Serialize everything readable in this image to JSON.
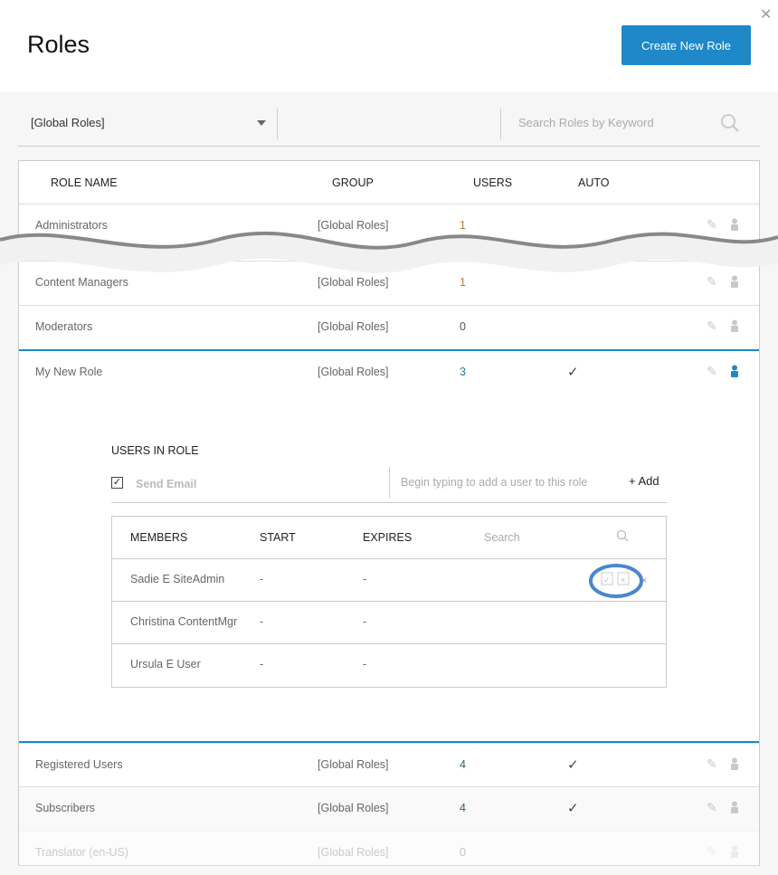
{
  "header": {
    "title": "Roles",
    "create_label": "Create New Role",
    "close_icon": "close-icon"
  },
  "filter": {
    "group_selected": "[Global Roles]",
    "search_placeholder": "Search Roles by Keyword"
  },
  "columns": {
    "name": "ROLE NAME",
    "group": "GROUP",
    "users": "USERS",
    "auto": "AUTO"
  },
  "roles": [
    {
      "name": "Administrators",
      "group": "[Global Roles]",
      "users": "1",
      "auto": ""
    },
    {
      "name": "Content Managers",
      "group": "[Global Roles]",
      "users": "1",
      "auto": ""
    },
    {
      "name": "Moderators",
      "group": "[Global Roles]",
      "users": "0",
      "auto": ""
    },
    {
      "name": "My New Role",
      "group": "[Global Roles]",
      "users": "3",
      "auto": "✓"
    },
    {
      "name": "Registered Users",
      "group": "[Global Roles]",
      "users": "4",
      "auto": "✓"
    },
    {
      "name": "Subscribers",
      "group": "[Global Roles]",
      "users": "4",
      "auto": "✓"
    },
    {
      "name": "Translator (en-US)",
      "group": "[Global Roles]",
      "users": "0",
      "auto": ""
    }
  ],
  "users_in_role": {
    "title": "USERS IN ROLE",
    "send_email_label": "Send Email",
    "send_email_checked": true,
    "add_placeholder": "Begin typing to add a user to this role",
    "add_label": "Add",
    "columns": {
      "members": "MEMBERS",
      "start": "START",
      "expires": "EXPIRES",
      "search_placeholder": "Search"
    },
    "members": [
      {
        "name": "Sadie E SiteAdmin",
        "start": "-",
        "expires": "-"
      },
      {
        "name": "Christina ContentMgr",
        "start": "-",
        "expires": "-"
      },
      {
        "name": "Ursula E User",
        "start": "-",
        "expires": "-"
      }
    ]
  },
  "colors": {
    "accent": "#1e88c8",
    "highlight_ring": "#4a86d0"
  }
}
